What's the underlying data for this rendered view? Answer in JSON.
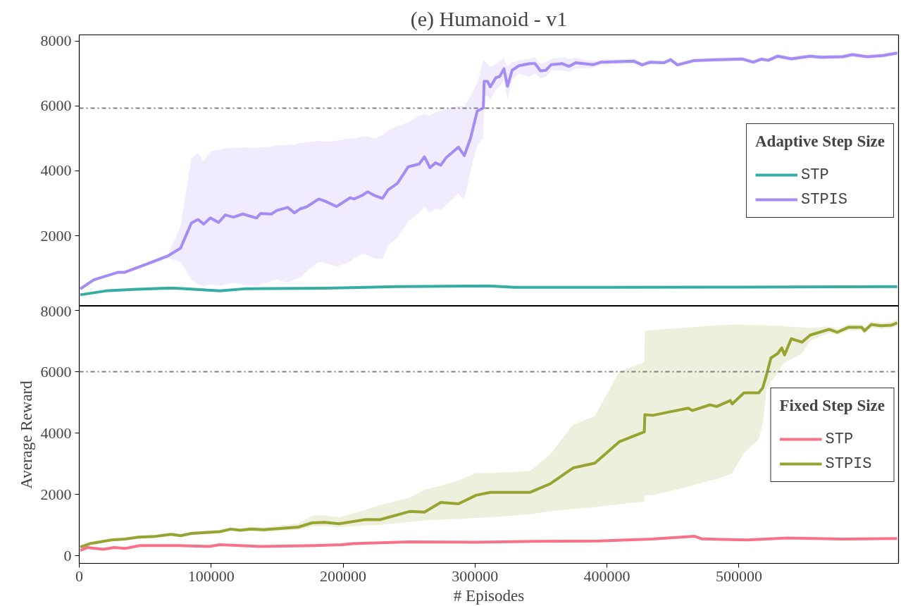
{
  "chart_data": [
    {
      "type": "line",
      "title": "(e) Humanoid - v1",
      "legend_title": "Adaptive Step Size",
      "legend": "right",
      "grid": false,
      "tick_labels": "y",
      "xlim": [
        0,
        621000
      ],
      "ylim": [
        -170,
        8190
      ],
      "xticks": [
        0,
        100000,
        200000,
        300000,
        400000,
        500000
      ],
      "yticks": [
        2000,
        4000,
        6000,
        8000
      ],
      "ref_lines": [
        {
          "axis": "y",
          "value": 5930,
          "color": "#808080",
          "line_style": "dashdot"
        }
      ],
      "series": [
        {
          "name": "STP",
          "color": "#36ada4",
          "x": [
            800,
            20000,
            40000,
            70000,
            106600,
            127000,
            185000,
            240000,
            310000,
            330000,
            400000,
            500000,
            620000
          ],
          "values": [
            180,
            300,
            346,
            390,
            300,
            370,
            385,
            430,
            455,
            410,
            410,
            415,
            430
          ]
        },
        {
          "name": "STPIS",
          "color": "#a48cf4",
          "x": [
            800,
            11000,
            29500,
            34500,
            53100,
            67600,
            76800,
            85000,
            90100,
            94300,
            99400,
            105600,
            110700,
            116900,
            124000,
            134400,
            137400,
            145600,
            149800,
            158000,
            163100,
            167300,
            172400,
            181600,
            186800,
            195000,
            205300,
            208300,
            214500,
            218600,
            223700,
            229900,
            234000,
            241200,
            249400,
            257600,
            261700,
            265800,
            270000,
            274000,
            278100,
            287400,
            291900,
            296600,
            301700,
            306300,
            306900,
            309500,
            311600,
            315700,
            318800,
            321900,
            324600,
            328100,
            333200,
            341500,
            345500,
            349600,
            353700,
            357800,
            366100,
            371200,
            376300,
            389700,
            395800,
            420500,
            426700,
            432800,
            443100,
            448300,
            453400,
            465700,
            484200,
            502700,
            510900,
            517100,
            522200,
            529400,
            539700,
            554000,
            562300,
            578700,
            585900,
            597200,
            609600,
            620000
          ],
          "values": [
            362,
            643,
            875,
            875,
            1155,
            1387,
            1618,
            2391,
            2500,
            2362,
            2548,
            2408,
            2640,
            2575,
            2669,
            2548,
            2686,
            2669,
            2780,
            2874,
            2705,
            2826,
            2891,
            3133,
            3058,
            2901,
            3169,
            3133,
            3244,
            3355,
            3244,
            3152,
            3410,
            3616,
            4125,
            4210,
            4432,
            4099,
            4246,
            4174,
            4405,
            4729,
            4471,
            5009,
            5845,
            5936,
            6755,
            6755,
            6589,
            6867,
            6913,
            7145,
            6606,
            7099,
            7239,
            7304,
            7304,
            7081,
            7099,
            7275,
            7304,
            7220,
            7331,
            7275,
            7350,
            7379,
            7265,
            7350,
            7331,
            7425,
            7265,
            7396,
            7425,
            7444,
            7350,
            7444,
            7405,
            7535,
            7451,
            7535,
            7500,
            7517,
            7582,
            7517,
            7555,
            7630
          ],
          "lower": [
            330,
            600,
            830,
            830,
            1100,
            1300,
            1200,
            650,
            500,
            450,
            500,
            450,
            500,
            550,
            500,
            450,
            500,
            600,
            650,
            550,
            650,
            700,
            900,
            1200,
            1150,
            1050,
            1200,
            1300,
            1450,
            1400,
            1300,
            1280,
            1700,
            1950,
            2450,
            2700,
            2900,
            2700,
            2850,
            2800,
            2950,
            3300,
            3100,
            4000,
            4800,
            5000,
            6300,
            6300,
            6200,
            6500,
            6600,
            6800,
            6200,
            6800,
            7000,
            6900,
            7000,
            6850,
            6900,
            7100,
            7100,
            7050,
            7150,
            7180,
            7270,
            7300,
            7200,
            7280,
            7270,
            7340,
            7200,
            7330,
            7360,
            7380,
            7280,
            7380,
            7340,
            7460,
            7380,
            7470,
            7430,
            7450,
            7510,
            7450,
            7490,
            7560
          ],
          "upper": [
            400,
            690,
            920,
            920,
            1210,
            1450,
            2300,
            4400,
            4550,
            4300,
            4600,
            4650,
            4700,
            4700,
            4720,
            4700,
            4720,
            4750,
            4780,
            4800,
            4800,
            4850,
            4880,
            4920,
            4900,
            4930,
            5000,
            5000,
            5050,
            5050,
            5000,
            5100,
            5250,
            5380,
            5500,
            5700,
            5750,
            5700,
            5800,
            5850,
            5900,
            6000,
            5980,
            6300,
            6700,
            7400,
            7400,
            7300,
            7200,
            7300,
            7400,
            7450,
            7200,
            7350,
            7400,
            7450,
            7500,
            7300,
            7350,
            7450,
            7500,
            7450,
            7480,
            7380,
            7430,
            7450,
            7350,
            7420,
            7400,
            7500,
            7340,
            7460,
            7490,
            7510,
            7420,
            7510,
            7470,
            7600,
            7520,
            7600,
            7570,
            7580,
            7650,
            7580,
            7620,
            7700
          ]
        }
      ]
    },
    {
      "type": "line",
      "legend_title": "Fixed Step Size",
      "legend": "right",
      "grid": false,
      "xlabel": "# Episodes",
      "ylabel": "Average Reward",
      "xlim": [
        0,
        621000
      ],
      "ylim": [
        -250,
        8140
      ],
      "xticks": [
        0,
        100000,
        200000,
        300000,
        400000,
        500000
      ],
      "yticks": [
        0,
        2000,
        4000,
        6000,
        8000
      ],
      "ref_lines": [
        {
          "axis": "y",
          "value": 6000,
          "color": "#808080",
          "line_style": "dashdot"
        }
      ],
      "series": [
        {
          "name": "STP",
          "color": "#f77189",
          "x": [
            800,
            5900,
            18300,
            26500,
            34700,
            45900,
            75800,
            98400,
            106600,
            137400,
            178400,
            199000,
            207200,
            219500,
            250400,
            301700,
            344200,
            393400,
            433900,
            466500,
            472200,
            506400,
            536300,
            579000,
            620000
          ],
          "values": [
            171,
            265,
            210,
            265,
            236,
            330,
            330,
            301,
            359,
            301,
            330,
            359,
            393,
            413,
            451,
            442,
            468,
            480,
            543,
            634,
            548,
            514,
            579,
            543,
            560
          ]
        },
        {
          "name": "STPIS",
          "color": "#97a431",
          "x": [
            800,
            8000,
            24400,
            34700,
            45000,
            57300,
            69600,
            76800,
            85000,
            106600,
            114800,
            122000,
            130200,
            139500,
            166200,
            176400,
            185700,
            197000,
            217500,
            227800,
            250400,
            261700,
            274000,
            287400,
            300700,
            311600,
            341500,
            356900,
            374300,
            390800,
            409300,
            428300,
            428700,
            434900,
            447200,
            461600,
            464700,
            478100,
            483200,
            493500,
            494900,
            503800,
            515000,
            518100,
            521200,
            524300,
            529400,
            532500,
            534600,
            539700,
            547900,
            554100,
            568400,
            574600,
            582800,
            593100,
            595200,
            600300,
            607500,
            615700,
            620000
          ],
          "values": [
            282,
            393,
            514,
            543,
            608,
            627,
            700,
            654,
            728,
            784,
            868,
            830,
            868,
            849,
            934,
            1071,
            1090,
            1044,
            1182,
            1175,
            1443,
            1423,
            1740,
            1694,
            1971,
            2065,
            2065,
            2343,
            2864,
            3021,
            3716,
            4041,
            4599,
            4580,
            4690,
            4811,
            4736,
            4922,
            4867,
            5062,
            4951,
            5313,
            5313,
            5480,
            5943,
            6454,
            6594,
            6780,
            6546,
            7077,
            6966,
            7198,
            7383,
            7289,
            7449,
            7449,
            7335,
            7540,
            7504,
            7521,
            7596
          ],
          "lower": [
            250,
            360,
            480,
            500,
            560,
            580,
            650,
            600,
            680,
            730,
            810,
            770,
            800,
            780,
            850,
            950,
            960,
            930,
            990,
            1000,
            1100,
            1150,
            1180,
            1200,
            1230,
            1257,
            1350,
            1450,
            1530,
            1583,
            1680,
            1768,
            1954,
            1980,
            2100,
            2250,
            2300,
            2450,
            2500,
            2650,
            2700,
            3347,
            3800,
            4300,
            5480,
            5700,
            5943,
            6200,
            6300,
            6409,
            6600,
            7000,
            7280,
            7190,
            7350,
            7350,
            7240,
            7440,
            7400,
            7420,
            7500
          ],
          "upper": [
            310,
            430,
            550,
            590,
            650,
            670,
            750,
            700,
            780,
            840,
            920,
            890,
            940,
            930,
            1050,
            1300,
            1320,
            1250,
            1500,
            1650,
            1900,
            2150,
            2280,
            2450,
            2700,
            2695,
            2760,
            3298,
            4273,
            4553,
            6000,
            6314,
            7335,
            7350,
            7400,
            7450,
            7450,
            7500,
            7520,
            7530,
            7530,
            7530,
            7520,
            7520,
            7520,
            7500,
            7500,
            7500,
            7480,
            7470,
            7450,
            7430,
            7480,
            7390,
            7550,
            7550,
            7440,
            7640,
            7600,
            7620,
            7700
          ]
        }
      ]
    }
  ]
}
